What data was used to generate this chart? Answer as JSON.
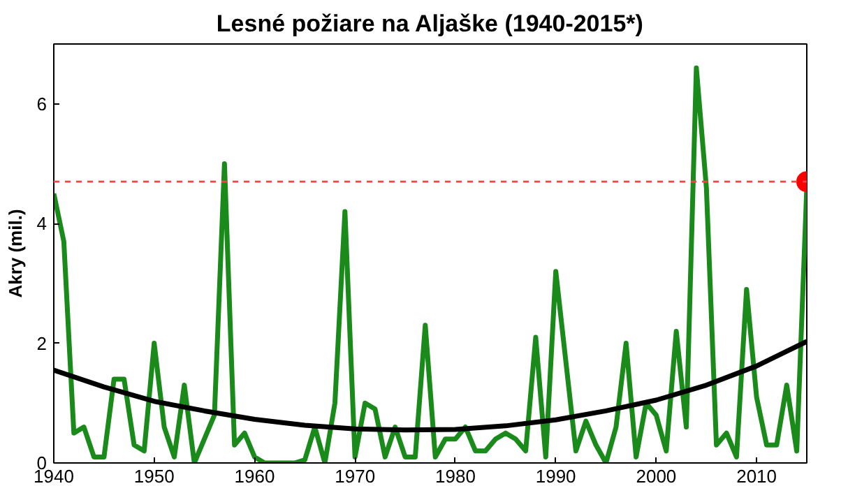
{
  "chart_data": {
    "type": "line",
    "title": "Lesné požiare na Aljaške (1940-2015*)",
    "ylabel": "Akry (mil.)",
    "xlim": [
      1940,
      2015
    ],
    "ylim": [
      0,
      7
    ],
    "xticks": [
      1940,
      1950,
      1960,
      1970,
      1980,
      1990,
      2000,
      2010
    ],
    "yticks": [
      0,
      2,
      4,
      6
    ],
    "grid": false,
    "marker": "none",
    "line_style": "solid",
    "series": [
      {
        "color": "#1a8a1a",
        "x": [
          1940,
          1941,
          1942,
          1943,
          1944,
          1945,
          1946,
          1947,
          1948,
          1949,
          1950,
          1951,
          1952,
          1953,
          1954,
          1955,
          1956,
          1957,
          1958,
          1959,
          1960,
          1961,
          1962,
          1963,
          1964,
          1965,
          1966,
          1967,
          1968,
          1969,
          1970,
          1971,
          1972,
          1973,
          1974,
          1975,
          1976,
          1977,
          1978,
          1979,
          1980,
          1981,
          1982,
          1983,
          1984,
          1985,
          1986,
          1987,
          1988,
          1989,
          1990,
          1991,
          1992,
          1993,
          1994,
          1995,
          1996,
          1997,
          1998,
          1999,
          2000,
          2001,
          2002,
          2003,
          2004,
          2005,
          2006,
          2007,
          2008,
          2009,
          2010,
          2011,
          2012,
          2013,
          2014,
          2015
        ],
        "values": [
          4.5,
          3.7,
          0.5,
          0.6,
          0.1,
          0.1,
          1.4,
          1.4,
          0.3,
          0.2,
          2.0,
          0.6,
          0.1,
          1.3,
          0.0,
          0.4,
          0.8,
          5.0,
          0.3,
          0.5,
          0.1,
          0.0,
          0.0,
          0.0,
          0.0,
          0.05,
          0.6,
          0.0,
          1.0,
          4.2,
          0.1,
          1.0,
          0.9,
          0.1,
          0.6,
          0.1,
          0.1,
          2.3,
          0.1,
          0.4,
          0.4,
          0.6,
          0.2,
          0.2,
          0.4,
          0.5,
          0.4,
          0.2,
          2.1,
          0.1,
          3.2,
          1.7,
          0.2,
          0.7,
          0.3,
          0.0,
          0.6,
          2.0,
          0.1,
          1.0,
          0.8,
          0.2,
          2.2,
          0.6,
          6.6,
          4.6,
          0.3,
          0.5,
          0.1,
          2.9,
          1.1,
          0.3,
          0.3,
          1.3,
          0.2,
          4.6
        ]
      },
      {
        "type": "line",
        "color": "#000000",
        "x": [
          1940,
          1945,
          1950,
          1955,
          1960,
          1965,
          1970,
          1975,
          1980,
          1985,
          1990,
          1995,
          2000,
          2005,
          2010,
          2015
        ],
        "values": [
          1.55,
          1.27,
          1.03,
          0.87,
          0.73,
          0.63,
          0.57,
          0.55,
          0.56,
          0.62,
          0.72,
          0.87,
          1.05,
          1.3,
          1.62,
          2.03
        ]
      },
      {
        "type": "scatter",
        "color": "#ff0000",
        "marker": "circle",
        "x": [
          2015
        ],
        "values": [
          4.7
        ]
      }
    ],
    "ref_lines": [
      {
        "axis": "y",
        "value": 4.7,
        "color": "#ff4040",
        "line_style": "dashed"
      }
    ]
  }
}
